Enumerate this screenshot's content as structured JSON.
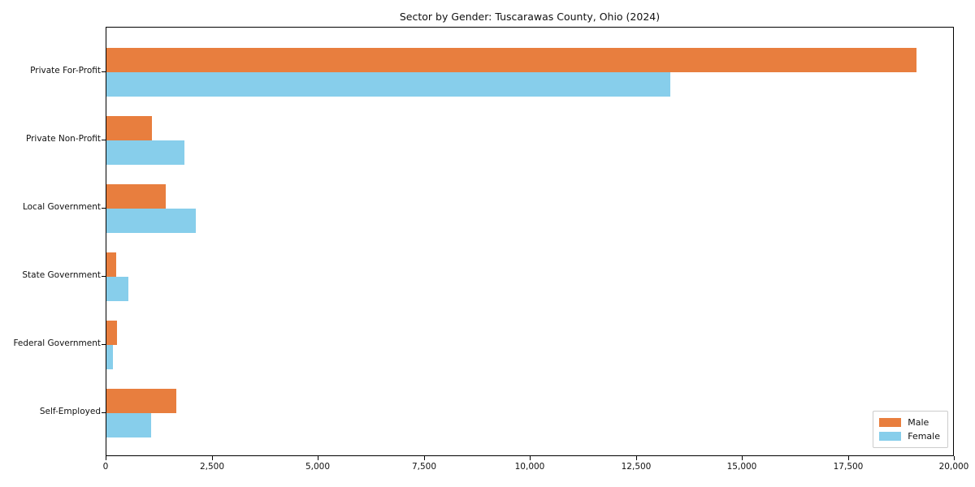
{
  "chart_data": {
    "type": "bar",
    "orientation": "horizontal",
    "title": "Sector by Gender: Tuscarawas County, Ohio (2024)",
    "categories": [
      "Private For-Profit",
      "Private Non-Profit",
      "Local Government",
      "State Government",
      "Federal Government",
      "Self-Employed"
    ],
    "series": [
      {
        "name": "Male",
        "color": "#e87e3e",
        "values": [
          19100,
          1080,
          1390,
          230,
          240,
          1650
        ]
      },
      {
        "name": "Female",
        "color": "#87ceeb",
        "values": [
          13300,
          1830,
          2100,
          520,
          160,
          1060
        ]
      }
    ],
    "xlabel": "",
    "ylabel": "",
    "xlim": [
      0,
      20000
    ],
    "x_ticks": [
      {
        "value": 0,
        "label": "0"
      },
      {
        "value": 2500,
        "label": "2,500"
      },
      {
        "value": 5000,
        "label": "5,000"
      },
      {
        "value": 7500,
        "label": "7,500"
      },
      {
        "value": 10000,
        "label": "10,000"
      },
      {
        "value": 12500,
        "label": "12,500"
      },
      {
        "value": 15000,
        "label": "15,000"
      },
      {
        "value": 17500,
        "label": "17,500"
      },
      {
        "value": 20000,
        "label": "20,000"
      }
    ],
    "grid": false,
    "legend": {
      "position": "lower-right",
      "entries": [
        "Male",
        "Female"
      ]
    },
    "colors": {
      "axis": "#000000",
      "legend_border": "#cccccc",
      "background": "#ffffff",
      "text": "#111111"
    }
  }
}
